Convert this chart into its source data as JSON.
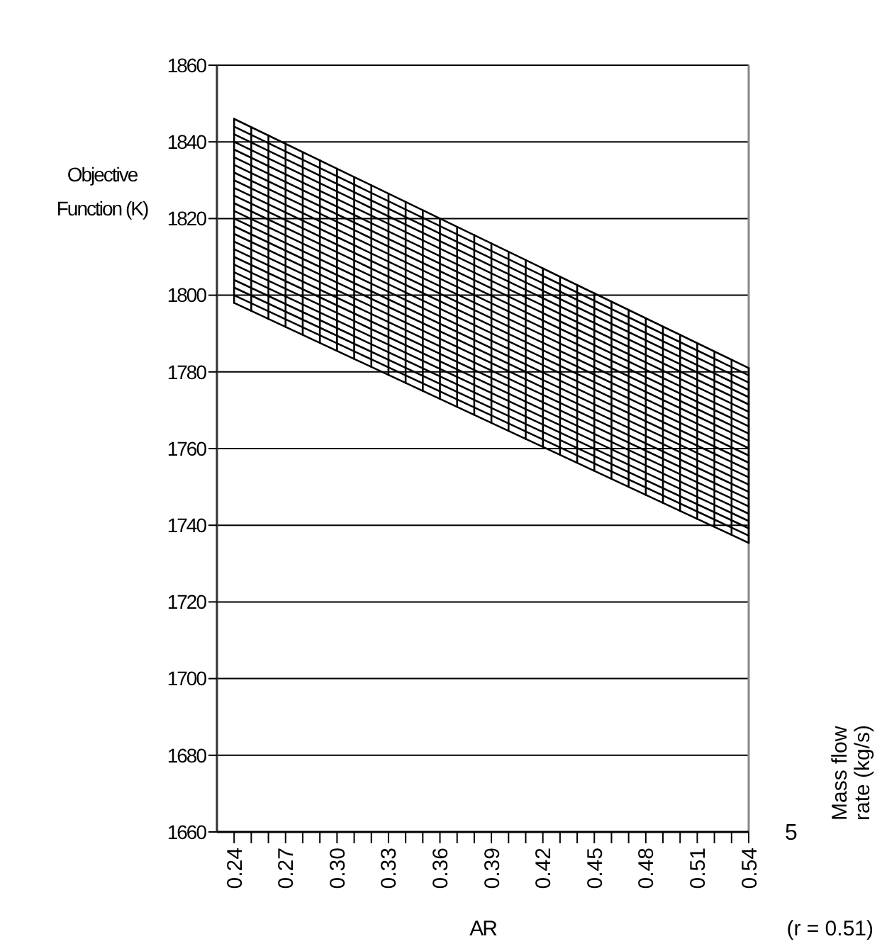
{
  "chart_data": {
    "type": "line",
    "xlabel": "AR",
    "ylabel": "Objective Function (K)",
    "y2label": "Mass flow rate (kg/s)",
    "annotations": [
      "5",
      "(r = 0.51)"
    ],
    "xlim": [
      0.23,
      0.54
    ],
    "ylim": [
      1660,
      1860
    ],
    "xticks": [
      {
        "value": 0.24,
        "label": "0.24"
      },
      {
        "value": 0.25,
        "label": null
      },
      {
        "value": 0.26,
        "label": null
      },
      {
        "value": 0.27,
        "label": "0.27"
      },
      {
        "value": 0.28,
        "label": null
      },
      {
        "value": 0.29,
        "label": null
      },
      {
        "value": 0.3,
        "label": "0.30"
      },
      {
        "value": 0.31,
        "label": null
      },
      {
        "value": 0.32,
        "label": null
      },
      {
        "value": 0.33,
        "label": "0.33"
      },
      {
        "value": 0.34,
        "label": null
      },
      {
        "value": 0.35,
        "label": null
      },
      {
        "value": 0.36,
        "label": "0.36"
      },
      {
        "value": 0.37,
        "label": null
      },
      {
        "value": 0.38,
        "label": null
      },
      {
        "value": 0.39,
        "label": "0.39"
      },
      {
        "value": 0.4,
        "label": null
      },
      {
        "value": 0.41,
        "label": null
      },
      {
        "value": 0.42,
        "label": "0.42"
      },
      {
        "value": 0.43,
        "label": null
      },
      {
        "value": 0.44,
        "label": null
      },
      {
        "value": 0.45,
        "label": "0.45"
      },
      {
        "value": 0.46,
        "label": null
      },
      {
        "value": 0.47,
        "label": null
      },
      {
        "value": 0.48,
        "label": "0.48"
      },
      {
        "value": 0.49,
        "label": null
      },
      {
        "value": 0.5,
        "label": null
      },
      {
        "value": 0.51,
        "label": "0.51"
      },
      {
        "value": 0.52,
        "label": null
      },
      {
        "value": 0.53,
        "label": null
      },
      {
        "value": 0.54,
        "label": "0.54"
      }
    ],
    "yticks": [
      1660,
      1680,
      1700,
      1720,
      1740,
      1760,
      1780,
      1800,
      1820,
      1840,
      1860
    ],
    "grid": "y",
    "series": [
      {
        "color": "#000000",
        "x": [
          0.24,
          0.54
        ],
        "values": [
          1846,
          1781
        ]
      },
      {
        "color": "#000000",
        "x": [
          0.24,
          0.54
        ],
        "values": [
          1844,
          1779.1
        ]
      },
      {
        "color": "#000000",
        "x": [
          0.24,
          0.54
        ],
        "values": [
          1842,
          1777.2
        ]
      },
      {
        "color": "#000000",
        "x": [
          0.24,
          0.54
        ],
        "values": [
          1840,
          1775.3
        ]
      },
      {
        "color": "#000000",
        "x": [
          0.24,
          0.54
        ],
        "values": [
          1838,
          1773.4
        ]
      },
      {
        "color": "#000000",
        "x": [
          0.24,
          0.54
        ],
        "values": [
          1836,
          1771.5
        ]
      },
      {
        "color": "#000000",
        "x": [
          0.24,
          0.54
        ],
        "values": [
          1834,
          1769.6
        ]
      },
      {
        "color": "#000000",
        "x": [
          0.24,
          0.54
        ],
        "values": [
          1832,
          1767.7
        ]
      },
      {
        "color": "#000000",
        "x": [
          0.24,
          0.54
        ],
        "values": [
          1830,
          1765.8
        ]
      },
      {
        "color": "#000000",
        "x": [
          0.24,
          0.54
        ],
        "values": [
          1828,
          1763.9
        ]
      },
      {
        "color": "#000000",
        "x": [
          0.24,
          0.54
        ],
        "values": [
          1826,
          1762
        ]
      },
      {
        "color": "#000000",
        "x": [
          0.24,
          0.54
        ],
        "values": [
          1824,
          1760.1
        ]
      },
      {
        "color": "#000000",
        "x": [
          0.24,
          0.54
        ],
        "values": [
          1822,
          1758.2
        ]
      },
      {
        "color": "#000000",
        "x": [
          0.24,
          0.54
        ],
        "values": [
          1820,
          1756.3
        ]
      },
      {
        "color": "#000000",
        "x": [
          0.24,
          0.54
        ],
        "values": [
          1818,
          1754.4
        ]
      },
      {
        "color": "#000000",
        "x": [
          0.24,
          0.54
        ],
        "values": [
          1816,
          1752.5
        ]
      },
      {
        "color": "#000000",
        "x": [
          0.24,
          0.54
        ],
        "values": [
          1814,
          1750.6
        ]
      },
      {
        "color": "#000000",
        "x": [
          0.24,
          0.54
        ],
        "values": [
          1812,
          1748.7
        ]
      },
      {
        "color": "#000000",
        "x": [
          0.24,
          0.54
        ],
        "values": [
          1810,
          1746.8
        ]
      },
      {
        "color": "#000000",
        "x": [
          0.24,
          0.54
        ],
        "values": [
          1808,
          1744.9
        ]
      },
      {
        "color": "#000000",
        "x": [
          0.24,
          0.54
        ],
        "values": [
          1806,
          1743
        ]
      },
      {
        "color": "#000000",
        "x": [
          0.24,
          0.54
        ],
        "values": [
          1804,
          1741.1
        ]
      },
      {
        "color": "#000000",
        "x": [
          0.24,
          0.54
        ],
        "values": [
          1802,
          1739.2
        ]
      },
      {
        "color": "#000000",
        "x": [
          0.24,
          0.54
        ],
        "values": [
          1800,
          1737.3
        ]
      },
      {
        "color": "#000000",
        "x": [
          0.24,
          0.54
        ],
        "values": [
          1798,
          1735.4
        ]
      },
      {
        "color": "#000000",
        "x": [
          0.24,
          0.24
        ],
        "values": [
          1798,
          1846
        ]
      },
      {
        "color": "#000000",
        "x": [
          0.25,
          0.25
        ],
        "values": [
          1795.9,
          1843.8
        ]
      },
      {
        "color": "#000000",
        "x": [
          0.26,
          0.26
        ],
        "values": [
          1793.8,
          1841.7
        ]
      },
      {
        "color": "#000000",
        "x": [
          0.27,
          0.27
        ],
        "values": [
          1791.7,
          1839.5
        ]
      },
      {
        "color": "#000000",
        "x": [
          0.28,
          0.28
        ],
        "values": [
          1789.7,
          1837.3
        ]
      },
      {
        "color": "#000000",
        "x": [
          0.29,
          0.29
        ],
        "values": [
          1787.6,
          1835.2
        ]
      },
      {
        "color": "#000000",
        "x": [
          0.3,
          0.3
        ],
        "values": [
          1785.5,
          1833
        ]
      },
      {
        "color": "#000000",
        "x": [
          0.31,
          0.31
        ],
        "values": [
          1783.4,
          1830.8
        ]
      },
      {
        "color": "#000000",
        "x": [
          0.32,
          0.32
        ],
        "values": [
          1781.3,
          1828.7
        ]
      },
      {
        "color": "#000000",
        "x": [
          0.33,
          0.33
        ],
        "values": [
          1779.2,
          1826.5
        ]
      },
      {
        "color": "#000000",
        "x": [
          0.34,
          0.34
        ],
        "values": [
          1777.1,
          1824.3
        ]
      },
      {
        "color": "#000000",
        "x": [
          0.35,
          0.35
        ],
        "values": [
          1775,
          1822.2
        ]
      },
      {
        "color": "#000000",
        "x": [
          0.36,
          0.36
        ],
        "values": [
          1773,
          1820
        ]
      },
      {
        "color": "#000000",
        "x": [
          0.37,
          0.37
        ],
        "values": [
          1770.9,
          1817.8
        ]
      },
      {
        "color": "#000000",
        "x": [
          0.38,
          0.38
        ],
        "values": [
          1768.8,
          1815.7
        ]
      },
      {
        "color": "#000000",
        "x": [
          0.39,
          0.39
        ],
        "values": [
          1766.7,
          1813.5
        ]
      },
      {
        "color": "#000000",
        "x": [
          0.4,
          0.4
        ],
        "values": [
          1764.6,
          1811.3
        ]
      },
      {
        "color": "#000000",
        "x": [
          0.41,
          0.41
        ],
        "values": [
          1762.5,
          1809.2
        ]
      },
      {
        "color": "#000000",
        "x": [
          0.42,
          0.42
        ],
        "values": [
          1760.4,
          1807
        ]
      },
      {
        "color": "#000000",
        "x": [
          0.43,
          0.43
        ],
        "values": [
          1758.4,
          1804.8
        ]
      },
      {
        "color": "#000000",
        "x": [
          0.44,
          0.44
        ],
        "values": [
          1756.3,
          1802.7
        ]
      },
      {
        "color": "#000000",
        "x": [
          0.45,
          0.45
        ],
        "values": [
          1754.2,
          1800.5
        ]
      },
      {
        "color": "#000000",
        "x": [
          0.46,
          0.46
        ],
        "values": [
          1752.1,
          1798.3
        ]
      },
      {
        "color": "#000000",
        "x": [
          0.47,
          0.47
        ],
        "values": [
          1750,
          1796.2
        ]
      },
      {
        "color": "#000000",
        "x": [
          0.48,
          0.48
        ],
        "values": [
          1747.9,
          1794
        ]
      },
      {
        "color": "#000000",
        "x": [
          0.49,
          0.49
        ],
        "values": [
          1745.8,
          1791.8
        ]
      },
      {
        "color": "#000000",
        "x": [
          0.5,
          0.5
        ],
        "values": [
          1743.7,
          1789.7
        ]
      },
      {
        "color": "#000000",
        "x": [
          0.51,
          0.51
        ],
        "values": [
          1741.6,
          1787.5
        ]
      },
      {
        "color": "#000000",
        "x": [
          0.52,
          0.52
        ],
        "values": [
          1739.6,
          1785.3
        ]
      },
      {
        "color": "#000000",
        "x": [
          0.53,
          0.53
        ],
        "values": [
          1737.5,
          1783.2
        ]
      },
      {
        "color": "#000000",
        "x": [
          0.54,
          0.54
        ],
        "values": [
          1735.4,
          1781
        ]
      }
    ]
  }
}
